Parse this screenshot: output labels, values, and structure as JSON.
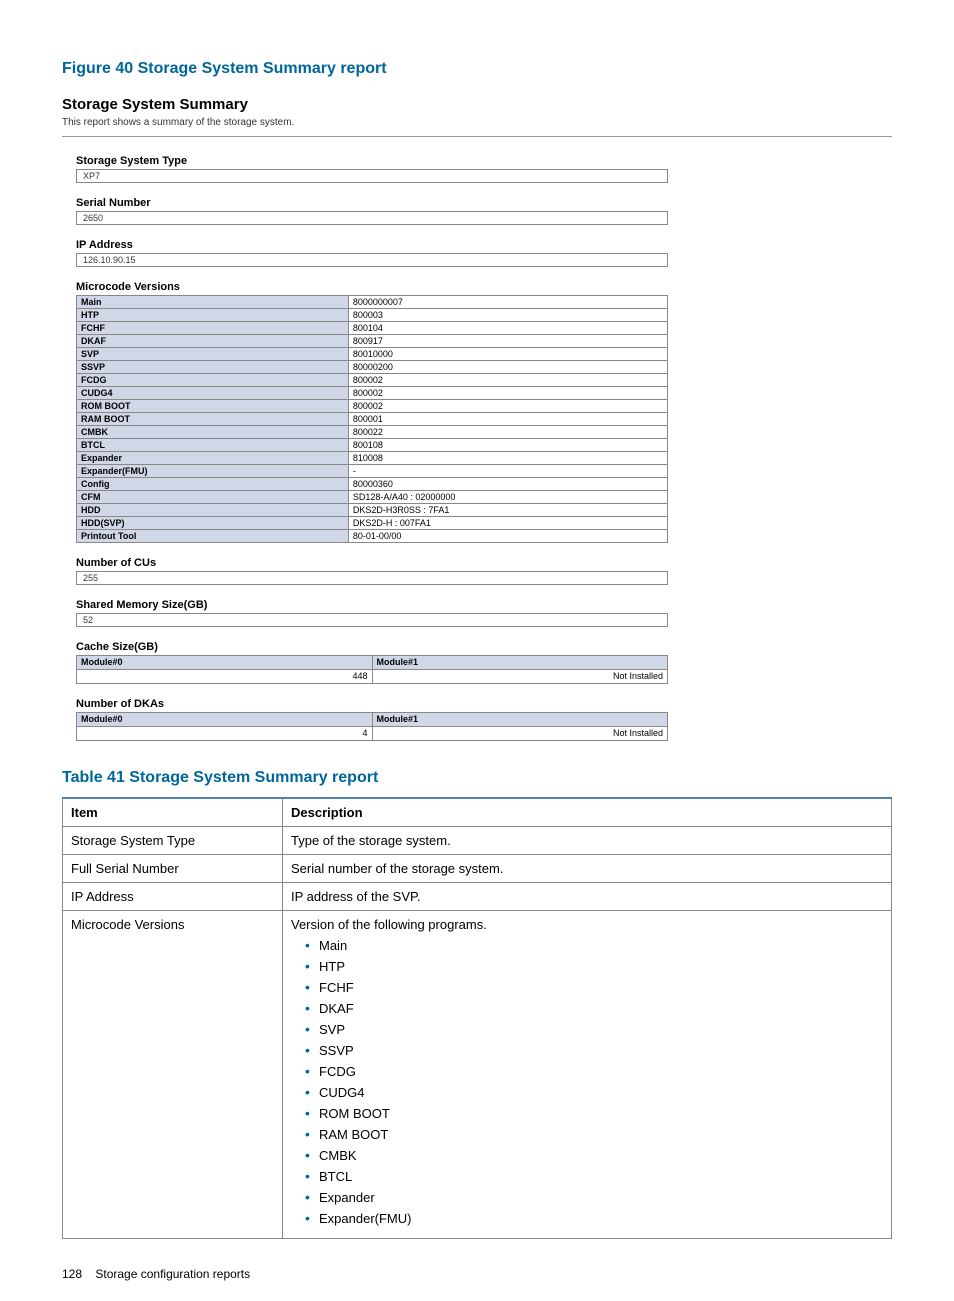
{
  "figure_title": "Figure 40 Storage System Summary report",
  "report": {
    "title": "Storage System Summary",
    "subtitle": "This report shows a summary of the storage system.",
    "storage_system_type": {
      "label": "Storage System Type",
      "value": "XP7"
    },
    "serial_number": {
      "label": "Serial Number",
      "value": "2650"
    },
    "ip_address": {
      "label": "IP Address",
      "value": "126.10.90.15"
    },
    "microcode": {
      "label": "Microcode Versions",
      "rows": [
        {
          "name": "Main",
          "value": "8000000007"
        },
        {
          "name": "HTP",
          "value": "800003"
        },
        {
          "name": "FCHF",
          "value": "800104"
        },
        {
          "name": "DKAF",
          "value": "800917"
        },
        {
          "name": "SVP",
          "value": "80010000"
        },
        {
          "name": "SSVP",
          "value": "80000200"
        },
        {
          "name": "FCDG",
          "value": "800002"
        },
        {
          "name": "CUDG4",
          "value": "800002"
        },
        {
          "name": "ROM BOOT",
          "value": "800002"
        },
        {
          "name": "RAM BOOT",
          "value": "800001"
        },
        {
          "name": "CMBK",
          "value": "800022"
        },
        {
          "name": "BTCL",
          "value": "800108"
        },
        {
          "name": "Expander",
          "value": "810008"
        },
        {
          "name": "Expander(FMU)",
          "value": "-"
        },
        {
          "name": "Config",
          "value": "80000360"
        },
        {
          "name": "CFM",
          "value": "SD128-A/A40 : 02000000"
        },
        {
          "name": "HDD",
          "value": "DKS2D-H3R0SS : 7FA1"
        },
        {
          "name": "HDD(SVP)",
          "value": "DKS2D-H : 007FA1"
        },
        {
          "name": "Printout Tool",
          "value": "80-01-00/00"
        }
      ]
    },
    "number_of_cus": {
      "label": "Number of CUs",
      "value": "255"
    },
    "shared_memory": {
      "label": "Shared Memory Size(GB)",
      "value": "52"
    },
    "cache_size": {
      "label": "Cache Size(GB)",
      "header0": "Module#0",
      "header1": "Module#1",
      "value0": "448",
      "value1": "Not Installed"
    },
    "number_of_dkas": {
      "label": "Number of DKAs",
      "header0": "Module#0",
      "header1": "Module#1",
      "value0": "4",
      "value1": "Not Installed"
    }
  },
  "table_title": "Table 41 Storage System Summary report",
  "table": {
    "head_item": "Item",
    "head_desc": "Description",
    "rows": [
      {
        "item": "Storage System Type",
        "desc": "Type of the storage system."
      },
      {
        "item": "Full Serial Number",
        "desc": "Serial number of the storage system."
      },
      {
        "item": "IP Address",
        "desc": "IP address of the SVP."
      }
    ],
    "microcode_row": {
      "item": "Microcode Versions",
      "desc": "Version of the following programs.",
      "bullets": [
        "Main",
        "HTP",
        "FCHF",
        "DKAF",
        "SVP",
        "SSVP",
        "FCDG",
        "CUDG4",
        "ROM BOOT",
        "RAM BOOT",
        "CMBK",
        "BTCL",
        "Expander",
        "Expander(FMU)"
      ]
    }
  },
  "footer": {
    "page": "128",
    "text": "Storage configuration reports"
  }
}
